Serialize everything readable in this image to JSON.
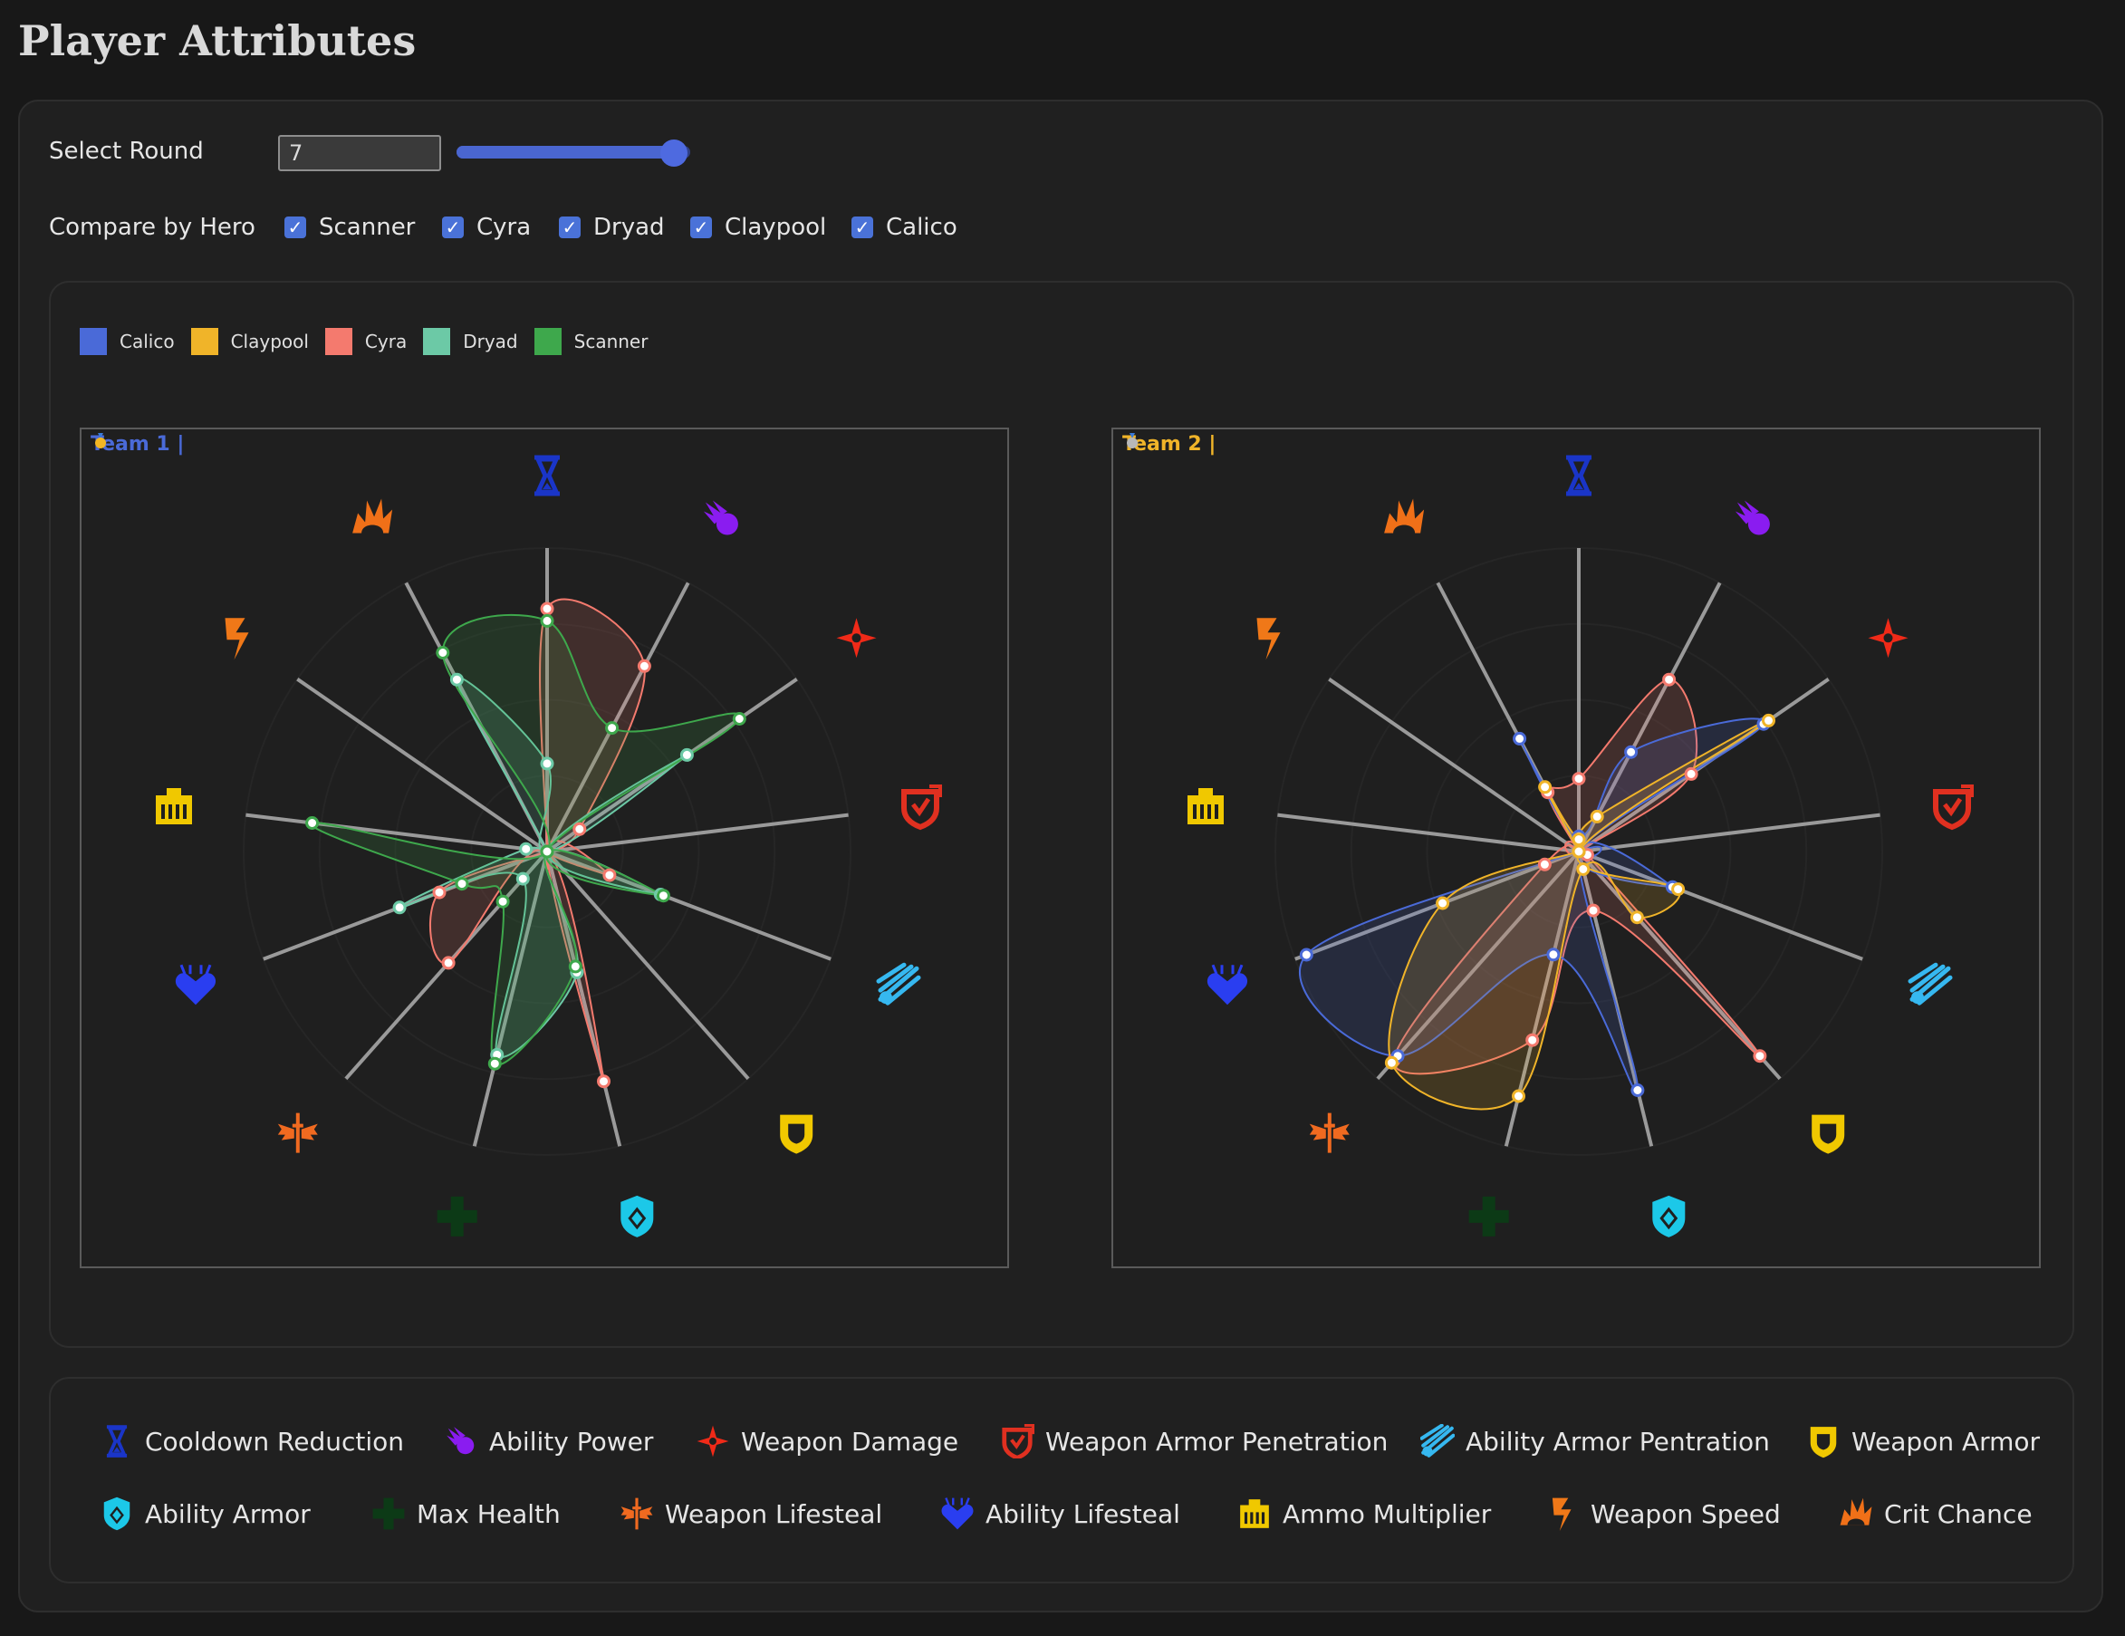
{
  "page": {
    "title": "Player Attributes"
  },
  "controls": {
    "round_label": "Select Round",
    "round_value": "7",
    "round_fraction": 0.93,
    "compare_label": "Compare by Hero",
    "heroes": [
      {
        "name": "Scanner",
        "checked": true
      },
      {
        "name": "Cyra",
        "checked": true
      },
      {
        "name": "Dryad",
        "checked": true
      },
      {
        "name": "Claypool",
        "checked": true
      },
      {
        "name": "Calico",
        "checked": true
      }
    ]
  },
  "legend": [
    {
      "name": "Calico",
      "color": "#4a6ad8"
    },
    {
      "name": "Claypool",
      "color": "#f0b429"
    },
    {
      "name": "Cyra",
      "color": "#f47a6e"
    },
    {
      "name": "Dryad",
      "color": "#6cc9a6"
    },
    {
      "name": "Scanner",
      "color": "#3ea84c"
    }
  ],
  "attributes": [
    {
      "name": "Cooldown Reduction",
      "icon": "hourglass-icon",
      "color": "#1a35c8"
    },
    {
      "name": "Ability Power",
      "icon": "comet-icon",
      "color": "#8a1cf0"
    },
    {
      "name": "Weapon Damage",
      "icon": "shuriken-icon",
      "color": "#f02a18"
    },
    {
      "name": "Weapon Armor Penetration",
      "icon": "pierced-shield-icon",
      "color": "#e03020"
    },
    {
      "name": "Ability Armor Pentration",
      "icon": "burst-icon",
      "color": "#36b8f0"
    },
    {
      "name": "Weapon Armor",
      "icon": "shield-icon",
      "color": "#f0c800"
    },
    {
      "name": "Ability Armor",
      "icon": "gem-shield-icon",
      "color": "#1cc8e8"
    },
    {
      "name": "Max Health",
      "icon": "cross-icon",
      "color": "#0c3a16"
    },
    {
      "name": "Weapon Lifesteal",
      "icon": "winged-sword-icon",
      "color": "#f06a20"
    },
    {
      "name": "Ability Lifesteal",
      "icon": "heart-icon",
      "color": "#2a3ef0"
    },
    {
      "name": "Ammo Multiplier",
      "icon": "ammo-box-icon",
      "color": "#f0c800"
    },
    {
      "name": "Weapon Speed",
      "icon": "lightning-icon",
      "color": "#f07818"
    },
    {
      "name": "Crit Chance",
      "icon": "explosion-icon",
      "color": "#f07018"
    }
  ],
  "chart_data": [
    {
      "type": "radar",
      "title": "Team 1 | ",
      "title_color": "#4a6ad8",
      "medal": "gold",
      "axes": [
        "Cooldown Reduction",
        "Ability Power",
        "Weapon Damage",
        "Weapon Armor Penetration",
        "Ability Armor Pentration",
        "Weapon Armor",
        "Ability Armor",
        "Max Health",
        "Weapon Lifesteal",
        "Ability Lifesteal",
        "Ammo Multiplier",
        "Weapon Speed",
        "Crit Chance"
      ],
      "series": [
        {
          "name": "Cyra",
          "color": "#f47a6e",
          "values": [
            0.8,
            0.69,
            0.13,
            0,
            0.22,
            0,
            0.78,
            0,
            0.49,
            0.38,
            0,
            0,
            0
          ]
        },
        {
          "name": "Dryad",
          "color": "#6cc9a6",
          "values": [
            0.29,
            0,
            0.56,
            0,
            0.4,
            0,
            0.41,
            0.69,
            0.12,
            0.52,
            0.07,
            0,
            0.64
          ]
        },
        {
          "name": "Scanner",
          "color": "#3ea84c",
          "values": [
            0.76,
            0.46,
            0.77,
            0,
            0.41,
            0,
            0.39,
            0.72,
            0.22,
            0.3,
            0.78,
            0,
            0.74
          ]
        }
      ]
    },
    {
      "type": "radar",
      "title": "Team 2 | ",
      "title_color": "#f0b429",
      "medal": "silver",
      "axes": [
        "Cooldown Reduction",
        "Ability Power",
        "Weapon Damage",
        "Weapon Armor Penetration",
        "Ability Armor Pentration",
        "Weapon Armor",
        "Ability Armor",
        "Max Health",
        "Weapon Lifesteal",
        "Ability Lifesteal",
        "Ammo Multiplier",
        "Weapon Speed",
        "Crit Chance"
      ],
      "series": [
        {
          "name": "Cyra",
          "color": "#f47a6e",
          "values": [
            0.24,
            0.64,
            0.45,
            0,
            0.03,
            0.9,
            0.2,
            0.64,
            0.92,
            0.12,
            0,
            0,
            0.22
          ]
        },
        {
          "name": "Calico",
          "color": "#4a6ad8",
          "values": [
            0.05,
            0.37,
            0.74,
            0,
            0.33,
            0,
            0.81,
            0.35,
            0.9,
            0.96,
            0,
            0,
            0.42
          ]
        },
        {
          "name": "Claypool",
          "color": "#f0b429",
          "values": [
            0.04,
            0.13,
            0.76,
            0,
            0.35,
            0.29,
            0.06,
            0.83,
            0.93,
            0.48,
            0,
            0,
            0.24
          ]
        }
      ]
    }
  ],
  "key": {
    "items": [
      "Cooldown Reduction",
      "Ability Power",
      "Weapon Damage",
      "Weapon Armor Penetration",
      "Ability Armor Pentration",
      "Weapon Armor",
      "Ability Armor",
      "Max Health",
      "Weapon Lifesteal",
      "Ability Lifesteal",
      "Ammo Multiplier",
      "Weapon Speed",
      "Crit Chance"
    ]
  }
}
